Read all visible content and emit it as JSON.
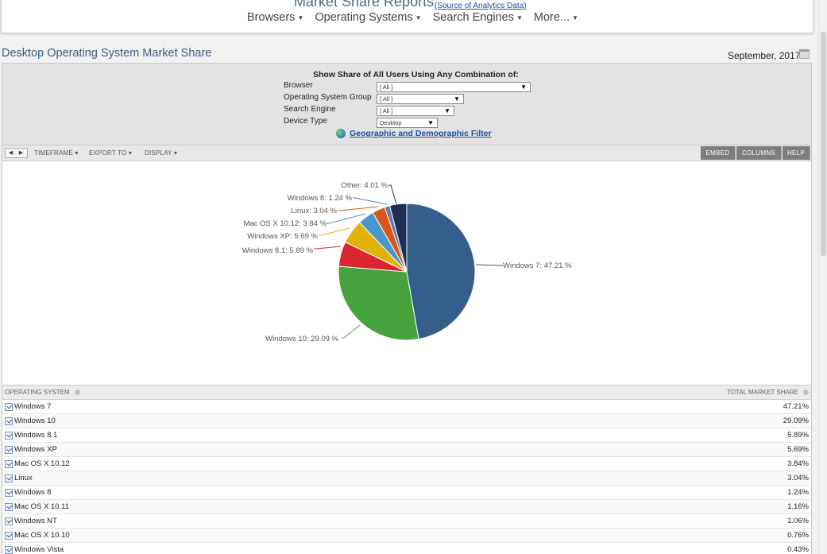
{
  "header": {
    "title": "Market Share Reports",
    "source_link": "(Source of Analytics Data)",
    "nav": [
      {
        "label": "Browsers"
      },
      {
        "label": "Operating Systems"
      },
      {
        "label": "Search Engines"
      },
      {
        "label": "More..."
      }
    ]
  },
  "page": {
    "title": "Desktop Operating System Market Share",
    "date": "September, 2017"
  },
  "filters": {
    "title": "Show Share of All Users Using Any Combination of:",
    "rows": [
      {
        "label": "Browser",
        "value": "[ All ]"
      },
      {
        "label": "Operating System Group",
        "value": "[ All ]"
      },
      {
        "label": "Search Engine",
        "value": "[ All ]"
      },
      {
        "label": "Device Type",
        "value": "Desktop"
      }
    ],
    "geo_link": "Geographic and Demographic Filter"
  },
  "toolbar": {
    "pager_prev": "◀",
    "pager_next": "▶",
    "timeframe": "TIMEFRAME",
    "export": "EXPORT TO",
    "display": "DISPLAY",
    "embed": "EMBED",
    "columns": "COLUMNS",
    "help": "HELP"
  },
  "chart_data": {
    "type": "pie",
    "series": [
      {
        "name": "Windows 7",
        "label": "Windows 7: 47.21 %",
        "value": 47.21,
        "color": "#355f8a"
      },
      {
        "name": "Windows 10",
        "label": "Windows 10: 29.09 %",
        "value": 29.09,
        "color": "#46a33c"
      },
      {
        "name": "Windows 8.1",
        "label": "Windows 8.1: 5.89 %",
        "value": 5.89,
        "color": "#d9272e"
      },
      {
        "name": "Windows XP",
        "label": "Windows XP: 5.69 %",
        "value": 5.69,
        "color": "#e3b20a"
      },
      {
        "name": "Mac OS X 10.12",
        "label": "Mac OS X 10.12: 3.84 %",
        "value": 3.84,
        "color": "#4a97c9"
      },
      {
        "name": "Linux",
        "label": "Linux: 3.04 %",
        "value": 3.04,
        "color": "#d85716"
      },
      {
        "name": "Windows 8",
        "label": "Windows 8: 1.24 %",
        "value": 1.24,
        "color": "#6a75b5"
      },
      {
        "name": "Other",
        "label": "Other: 4.01 %",
        "value": 4.01,
        "color": "#1c2f54"
      }
    ]
  },
  "table": {
    "col_os": "OPERATING SYSTEM",
    "col_share": "TOTAL MARKET SHARE",
    "rows": [
      {
        "name": "Windows 7",
        "value": "47.21%"
      },
      {
        "name": "Windows 10",
        "value": "29.09%"
      },
      {
        "name": "Windows 8.1",
        "value": "5.89%"
      },
      {
        "name": "Windows XP",
        "value": "5.69%"
      },
      {
        "name": "Mac OS X 10.12",
        "value": "3.84%"
      },
      {
        "name": "Linux",
        "value": "3.04%"
      },
      {
        "name": "Windows 8",
        "value": "1.24%"
      },
      {
        "name": "Mac OS X 10.11",
        "value": "1.16%"
      },
      {
        "name": "Windows NT",
        "value": "1.06%"
      },
      {
        "name": "Mac OS X 10.10",
        "value": "0.76%"
      },
      {
        "name": "Windows Vista",
        "value": "0.43%"
      }
    ]
  }
}
